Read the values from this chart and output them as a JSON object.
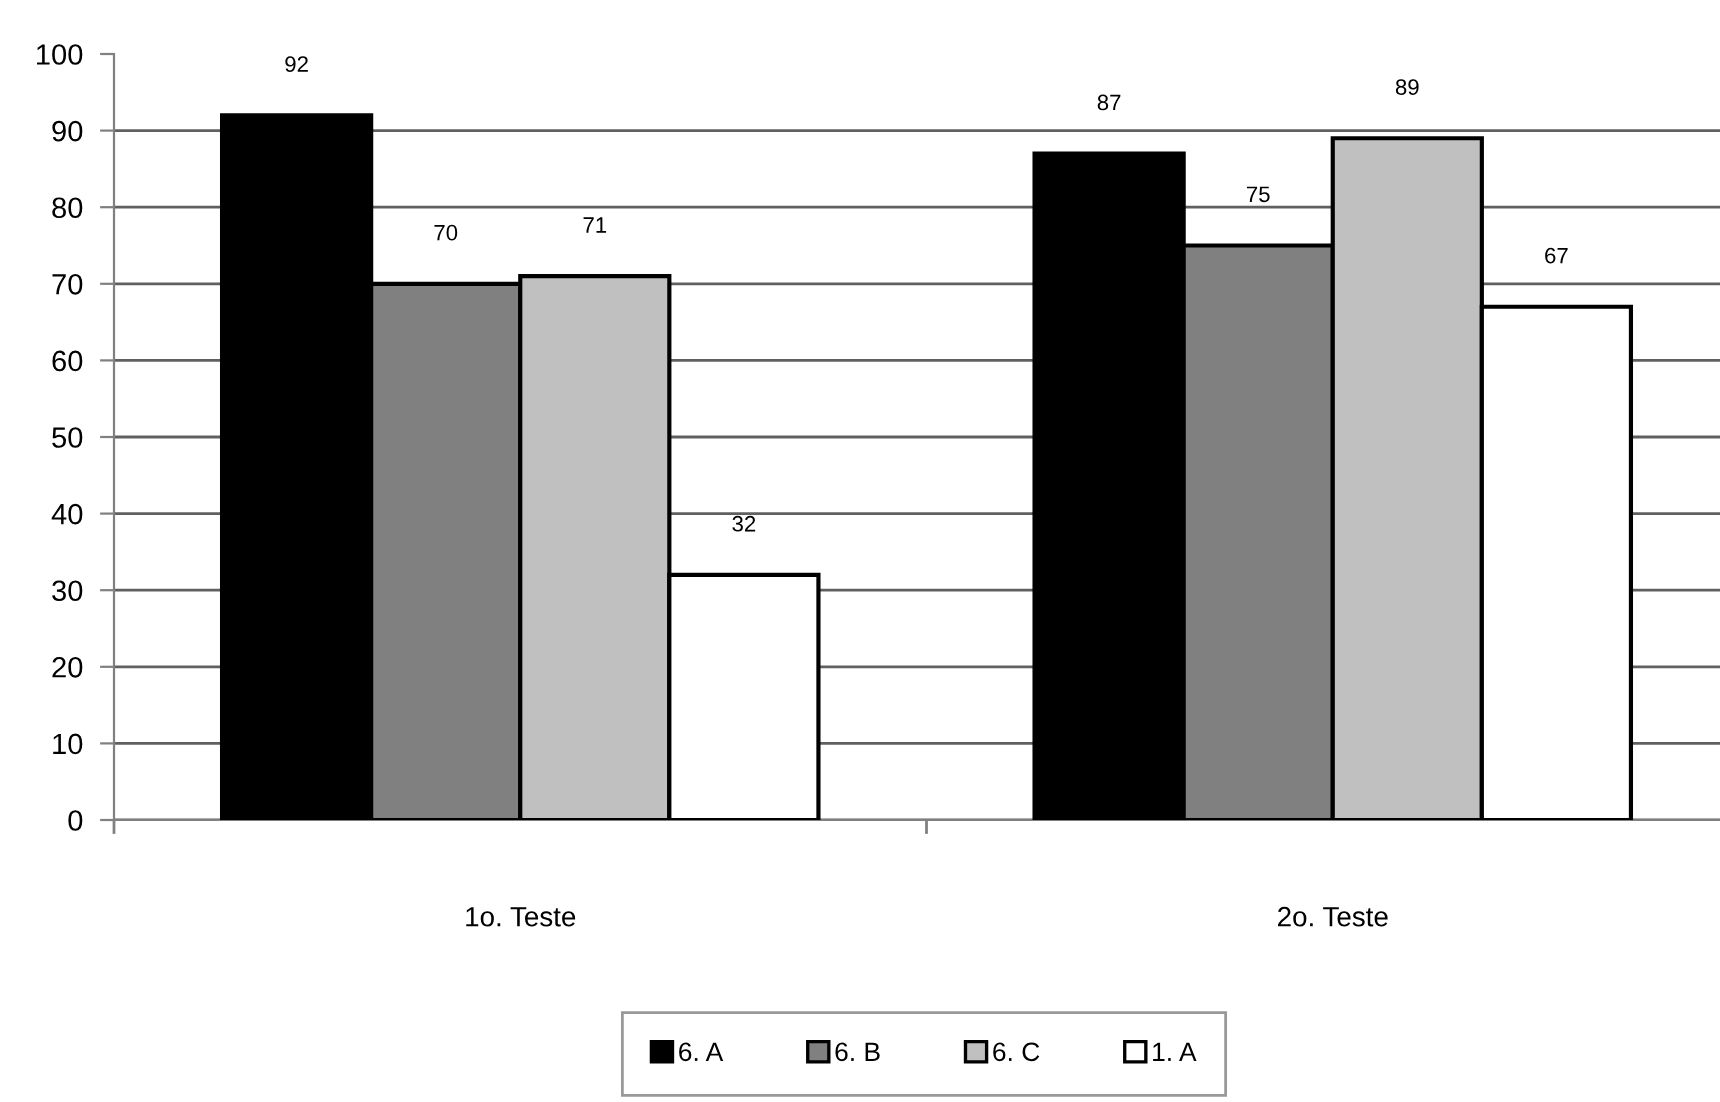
{
  "chart_data": {
    "type": "bar",
    "categories": [
      "1o. Teste",
      "2o. Teste"
    ],
    "series": [
      {
        "name": "6. A",
        "color": "#000000",
        "values": [
          92,
          87
        ]
      },
      {
        "name": "6. B",
        "color": "#808080",
        "values": [
          70,
          75
        ]
      },
      {
        "name": "6. C",
        "color": "#c0c0c0",
        "values": [
          71,
          89
        ]
      },
      {
        "name": "1. A",
        "color": "#ffffff",
        "values": [
          32,
          67
        ]
      }
    ],
    "ylim": [
      0,
      100
    ],
    "yticks": [
      0,
      10,
      20,
      30,
      40,
      50,
      60,
      70,
      80,
      90,
      100
    ],
    "grid": "y",
    "legend": "bottom",
    "data_labels": true
  }
}
